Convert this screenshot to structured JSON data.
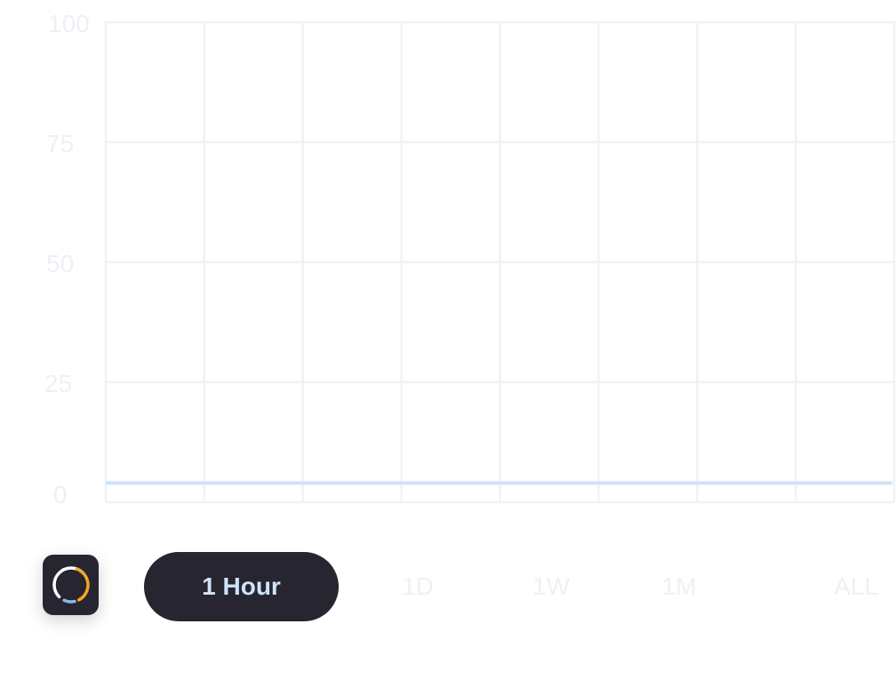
{
  "chart_data": {
    "type": "line",
    "title": "",
    "xlabel": "",
    "ylabel": "",
    "y_ticks": [
      "100",
      "75",
      "50",
      "25",
      "0"
    ],
    "ylim": [
      0,
      100
    ],
    "x": [
      0,
      1,
      2,
      3,
      4,
      5,
      6,
      7,
      8
    ],
    "series": [
      {
        "values": [
          4,
          4,
          4,
          4,
          4,
          4,
          4,
          4,
          4
        ],
        "color": "#cfe3f8"
      }
    ],
    "grid": true,
    "grid_color": "#f0f2f5"
  },
  "time_range": {
    "active_label": "1 Hour",
    "options": [
      "1D",
      "1W",
      "1M",
      "ALL"
    ]
  },
  "icons": {
    "app": "loading-ring-icon"
  },
  "colors": {
    "dark": "#262530",
    "accent_orange": "#f5a623",
    "accent_blue": "#8fb6ec",
    "line": "#cfe3f8",
    "muted_text": "#eef0f5"
  }
}
